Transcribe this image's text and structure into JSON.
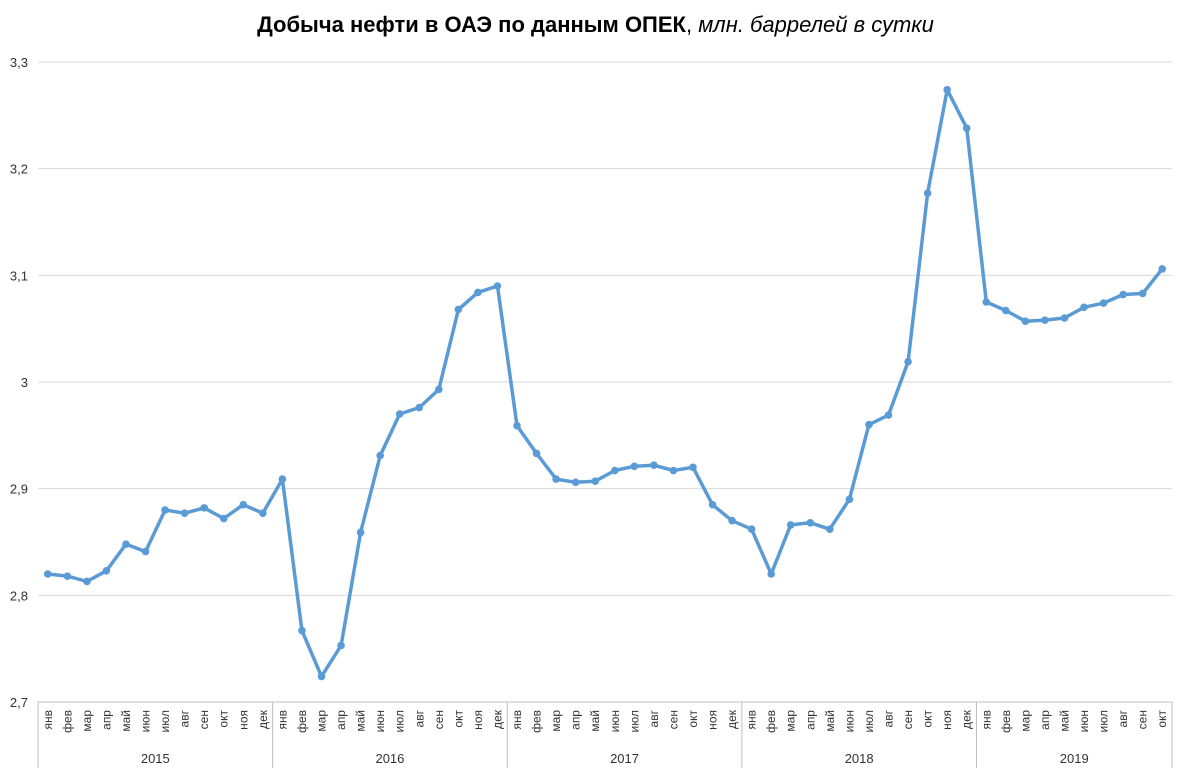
{
  "chart_data": {
    "type": "line",
    "title": "Добыча нефти в ОАЭ по данным ОПЕК",
    "subtitle": "млн. баррелей в сутки",
    "ylim": [
      2.7,
      3.3
    ],
    "yticks": [
      "2,7",
      "2,8",
      "2,9",
      "3",
      "3,1",
      "3,2",
      "3,3"
    ],
    "ytick_values": [
      2.7,
      2.8,
      2.9,
      3.0,
      3.1,
      3.2,
      3.3
    ],
    "grid": true,
    "legend": "none",
    "line_color": "#5B9BD5",
    "years": [
      {
        "label": "2015",
        "months": 12
      },
      {
        "label": "2016",
        "months": 12
      },
      {
        "label": "2017",
        "months": 12
      },
      {
        "label": "2018",
        "months": 12
      },
      {
        "label": "2019",
        "months": 10
      }
    ],
    "month_labels": [
      "янв",
      "фев",
      "мар",
      "апр",
      "май",
      "июн",
      "июл",
      "авг",
      "сен",
      "окт",
      "ноя",
      "дек"
    ],
    "categories": [
      "янв",
      "фев",
      "мар",
      "апр",
      "май",
      "июн",
      "июл",
      "авг",
      "сен",
      "окт",
      "ноя",
      "дек",
      "янв",
      "фев",
      "мар",
      "апр",
      "май",
      "июн",
      "июл",
      "авг",
      "сен",
      "окт",
      "ноя",
      "дек",
      "янв",
      "фев",
      "мар",
      "апр",
      "май",
      "июн",
      "июл",
      "авг",
      "сен",
      "окт",
      "ноя",
      "дек",
      "янв",
      "фев",
      "мар",
      "апр",
      "май",
      "июн",
      "июл",
      "авг",
      "сен",
      "окт",
      "ноя",
      "дек",
      "янв",
      "фев",
      "мар",
      "апр",
      "май",
      "июн",
      "июл",
      "авг",
      "сен",
      "окт"
    ],
    "values": [
      2.82,
      2.818,
      2.813,
      2.823,
      2.848,
      2.841,
      2.88,
      2.877,
      2.882,
      2.872,
      2.885,
      2.877,
      2.909,
      2.767,
      2.724,
      2.753,
      2.859,
      2.931,
      2.97,
      2.976,
      2.993,
      3.068,
      3.084,
      3.09,
      2.959,
      2.933,
      2.909,
      2.906,
      2.907,
      2.917,
      2.921,
      2.922,
      2.917,
      2.92,
      2.885,
      2.87,
      2.862,
      2.82,
      2.866,
      2.868,
      2.862,
      2.89,
      2.96,
      2.969,
      3.019,
      3.177,
      3.274,
      3.238,
      3.075,
      3.067,
      3.057,
      3.058,
      3.06,
      3.07,
      3.074,
      3.082,
      3.083,
      3.106
    ]
  }
}
